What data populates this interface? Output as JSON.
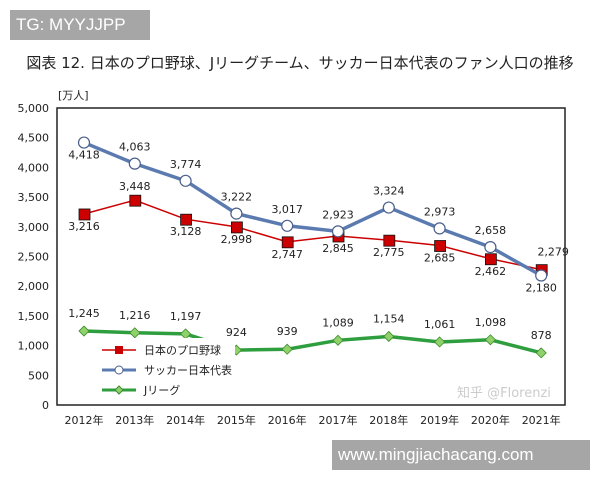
{
  "overlays": {
    "top_left": "TG: MYYJJPP",
    "bottom_right": "www.mingjiachacang.com",
    "watermark": "知乎 @Florenzi"
  },
  "chart_data": {
    "type": "line",
    "title": "図表 12.  日本のプロ野球、Jリーグチーム、サッカー日本代表のファン人口の推移",
    "ylabel": "[万人]",
    "xlabel": "",
    "categories": [
      "2012年",
      "2013年",
      "2014年",
      "2015年",
      "2016年",
      "2017年",
      "2018年",
      "2019年",
      "2020年",
      "2021年"
    ],
    "ylim": [
      0,
      5000
    ],
    "yticks": [
      0,
      500,
      1000,
      1500,
      2000,
      2500,
      3000,
      3500,
      4000,
      4500,
      5000
    ],
    "ytick_labels": [
      "0",
      "500",
      "1,000",
      "1,500",
      "2,000",
      "2,500",
      "3,000",
      "3,500",
      "4,000",
      "4,500",
      "5,000"
    ],
    "grid": false,
    "legend_position": "lower-left inside",
    "series": [
      {
        "name": "日本のプロ野球",
        "color": "#cc0000",
        "marker": "square",
        "values": [
          3216,
          3448,
          3128,
          2998,
          2747,
          2845,
          2775,
          2685,
          2462,
          2279
        ],
        "labels": [
          "3,216",
          "3,448",
          "3,128",
          "2,998",
          "2,747",
          "2,845",
          "2,775",
          "2,685",
          "2,462",
          "2,279"
        ]
      },
      {
        "name": "サッカー日本代表",
        "color": "#5b7bb0",
        "marker": "open-circle",
        "values": [
          4418,
          4063,
          3774,
          3222,
          3017,
          2923,
          3324,
          2973,
          2658,
          2180
        ],
        "labels": [
          "4,418",
          "4,063",
          "3,774",
          "3,222",
          "3,017",
          "2,923",
          "3,324",
          "2,973",
          "2,658",
          "2,180"
        ]
      },
      {
        "name": "Jリーグ",
        "color": "#2e9e3e",
        "marker": "diamond",
        "values": [
          1245,
          1216,
          1197,
          924,
          939,
          1089,
          1154,
          1061,
          1098,
          878
        ],
        "labels": [
          "1,245",
          "1,216",
          "1,197",
          "924",
          "939",
          "1,089",
          "1,154",
          "1,061",
          "1,098",
          "878"
        ]
      }
    ]
  }
}
